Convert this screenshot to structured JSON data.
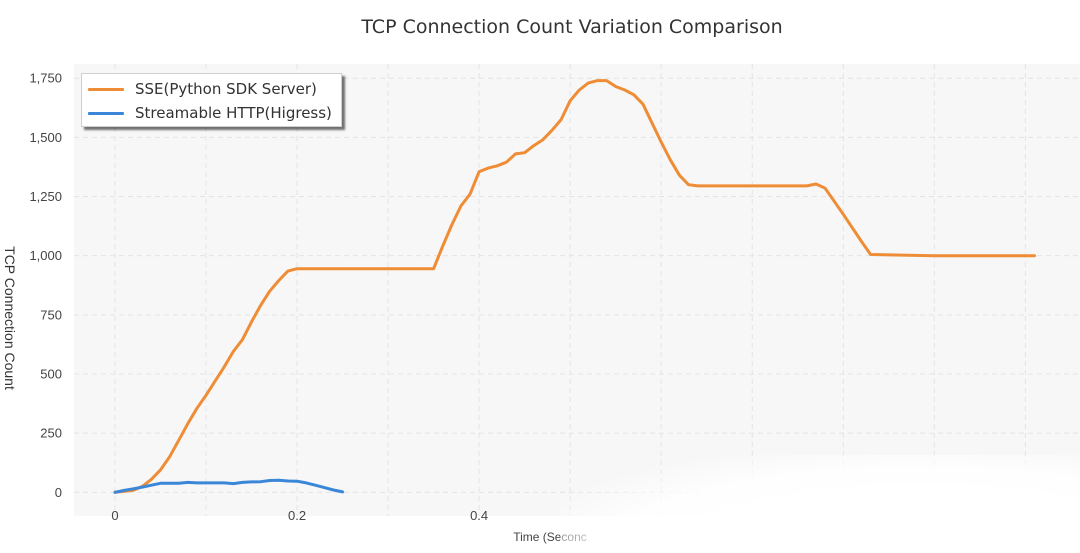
{
  "chart_data": {
    "type": "line",
    "title": "TCP Connection Count Variation Comparison",
    "xlabel": "Time (Seconc",
    "ylabel": "TCP Connection Count",
    "xlim": [
      -0.045,
      1.06
    ],
    "ylim": [
      -100,
      1810
    ],
    "x_ticks": [
      0,
      0.2,
      0.4
    ],
    "x_tick_labels": [
      "0",
      "0.2",
      "0.4"
    ],
    "y_ticks": [
      0,
      250,
      500,
      750,
      1000,
      1250,
      1500,
      1750
    ],
    "y_tick_labels": [
      "0",
      "250",
      "500",
      "750",
      "1,000",
      "1,250",
      "1,500",
      "1,750"
    ],
    "grid": true,
    "legend_position": "top-left",
    "series": [
      {
        "name": "SSE(Python SDK Server)",
        "color": "#ef8c36",
        "points": [
          [
            0,
            0
          ],
          [
            0.02,
            8
          ],
          [
            0.03,
            25
          ],
          [
            0.04,
            55
          ],
          [
            0.05,
            95
          ],
          [
            0.06,
            150
          ],
          [
            0.07,
            220
          ],
          [
            0.08,
            290
          ],
          [
            0.09,
            355
          ],
          [
            0.1,
            410
          ],
          [
            0.11,
            470
          ],
          [
            0.12,
            530
          ],
          [
            0.13,
            595
          ],
          [
            0.14,
            645
          ],
          [
            0.15,
            720
          ],
          [
            0.16,
            790
          ],
          [
            0.17,
            850
          ],
          [
            0.18,
            895
          ],
          [
            0.19,
            935
          ],
          [
            0.2,
            945
          ],
          [
            0.25,
            945
          ],
          [
            0.3,
            945
          ],
          [
            0.35,
            945
          ],
          [
            0.36,
            1040
          ],
          [
            0.37,
            1130
          ],
          [
            0.38,
            1210
          ],
          [
            0.39,
            1260
          ],
          [
            0.4,
            1355
          ],
          [
            0.41,
            1370
          ],
          [
            0.42,
            1380
          ],
          [
            0.43,
            1395
          ],
          [
            0.44,
            1430
          ],
          [
            0.45,
            1435
          ],
          [
            0.46,
            1465
          ],
          [
            0.47,
            1490
          ],
          [
            0.48,
            1530
          ],
          [
            0.49,
            1575
          ],
          [
            0.5,
            1655
          ],
          [
            0.51,
            1700
          ],
          [
            0.52,
            1730
          ],
          [
            0.53,
            1740
          ],
          [
            0.54,
            1740
          ],
          [
            0.55,
            1715
          ],
          [
            0.56,
            1700
          ],
          [
            0.57,
            1680
          ],
          [
            0.58,
            1640
          ],
          [
            0.59,
            1560
          ],
          [
            0.6,
            1480
          ],
          [
            0.61,
            1405
          ],
          [
            0.62,
            1340
          ],
          [
            0.63,
            1300
          ],
          [
            0.64,
            1295
          ],
          [
            0.7,
            1295
          ],
          [
            0.76,
            1295
          ],
          [
            0.77,
            1303
          ],
          [
            0.78,
            1285
          ],
          [
            0.8,
            1175
          ],
          [
            0.82,
            1060
          ],
          [
            0.83,
            1005
          ],
          [
            0.9,
            1000
          ],
          [
            1.0,
            1000
          ],
          [
            1.01,
            1000
          ]
        ]
      },
      {
        "name": "Streamable HTTP(Higress)",
        "color": "#3a86d8",
        "points": [
          [
            0,
            0
          ],
          [
            0.01,
            8
          ],
          [
            0.02,
            15
          ],
          [
            0.03,
            22
          ],
          [
            0.04,
            30
          ],
          [
            0.05,
            38
          ],
          [
            0.07,
            38
          ],
          [
            0.08,
            42
          ],
          [
            0.09,
            40
          ],
          [
            0.11,
            40
          ],
          [
            0.12,
            40
          ],
          [
            0.13,
            37
          ],
          [
            0.14,
            42
          ],
          [
            0.15,
            44
          ],
          [
            0.16,
            45
          ],
          [
            0.17,
            50
          ],
          [
            0.18,
            51
          ],
          [
            0.19,
            48
          ],
          [
            0.2,
            47
          ],
          [
            0.21,
            40
          ],
          [
            0.22,
            30
          ],
          [
            0.23,
            20
          ],
          [
            0.24,
            10
          ],
          [
            0.25,
            2
          ]
        ]
      }
    ]
  }
}
